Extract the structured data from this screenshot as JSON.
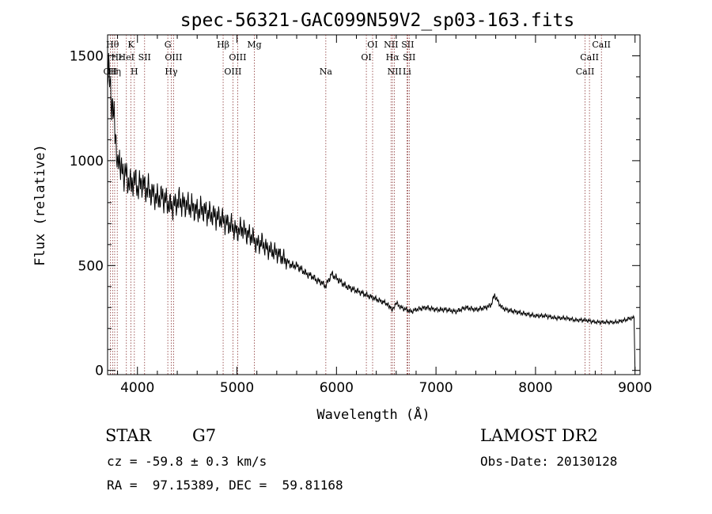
{
  "chart_data": {
    "type": "line",
    "title": "spec-56321-GAC099N59V2_sp03-163.fits",
    "xlabel": "Wavelength (Å)",
    "ylabel": "Flux (relative)",
    "xlim": [
      3700,
      9050
    ],
    "ylim": [
      -20,
      1600
    ],
    "xticks": [
      4000,
      5000,
      6000,
      7000,
      8000,
      9000
    ],
    "yticks": [
      0,
      500,
      1000,
      1500
    ],
    "series": [
      {
        "x": [
          3700,
          3720,
          3740,
          3760,
          3780,
          3800,
          3820,
          3840,
          3860,
          3880,
          3900,
          3920,
          3940,
          3960,
          3980,
          4000,
          4020,
          4050,
          4080,
          4100,
          4130,
          4160,
          4200,
          4250,
          4300,
          4340,
          4380,
          4420,
          4460,
          4500,
          4550,
          4600,
          4650,
          4700,
          4750,
          4800,
          4850,
          4900,
          4950,
          5000,
          5050,
          5100,
          5150,
          5200,
          5250,
          5300,
          5350,
          5400,
          5450,
          5500,
          5550,
          5600,
          5650,
          5700,
          5750,
          5800,
          5850,
          5890,
          5950,
          6000,
          6050,
          6100,
          6150,
          6200,
          6250,
          6300,
          6350,
          6400,
          6450,
          6500,
          6563,
          6600,
          6650,
          6700,
          6750,
          6800,
          6900,
          7000,
          7100,
          7200,
          7300,
          7400,
          7500,
          7550,
          7590,
          7620,
          7660,
          7700,
          7800,
          7900,
          8000,
          8100,
          8200,
          8300,
          8400,
          8500,
          8600,
          8700,
          8800,
          8900,
          8960,
          8990,
          9000
        ],
        "y": [
          1450,
          1380,
          1300,
          1200,
          1150,
          950,
          1020,
          960,
          910,
          980,
          870,
          930,
          860,
          920,
          900,
          870,
          880,
          900,
          860,
          870,
          850,
          840,
          820,
          830,
          800,
          780,
          790,
          810,
          790,
          790,
          780,
          760,
          770,
          750,
          740,
          730,
          720,
          700,
          690,
          660,
          680,
          650,
          640,
          600,
          610,
          580,
          570,
          560,
          540,
          520,
          500,
          500,
          480,
          460,
          450,
          430,
          420,
          400,
          460,
          440,
          420,
          400,
          390,
          380,
          370,
          360,
          350,
          340,
          330,
          320,
          290,
          320,
          300,
          290,
          280,
          290,
          300,
          290,
          290,
          280,
          300,
          290,
          300,
          310,
          360,
          330,
          300,
          290,
          280,
          270,
          260,
          260,
          250,
          250,
          240,
          240,
          230,
          230,
          230,
          240,
          250,
          250,
          0
        ]
      }
    ],
    "line_markers": [
      {
        "w": 3727,
        "label": "OII",
        "row": 2
      },
      {
        "w": 3750,
        "label": "Hθ",
        "row": 0
      },
      {
        "w": 3771,
        "label": "Hη",
        "row": 2
      },
      {
        "w": 3797,
        "label": "Hε",
        "row": 1
      },
      {
        "w": 3889,
        "label": "HeI",
        "row": 1
      },
      {
        "w": 3934,
        "label": "K",
        "row": 0
      },
      {
        "w": 3969,
        "label": "H",
        "row": 2
      },
      {
        "w": 4072,
        "label": "SII",
        "row": 1
      },
      {
        "w": 4305,
        "label": "G",
        "row": 0
      },
      {
        "w": 4340,
        "label": "Hγ",
        "row": 2
      },
      {
        "w": 4363,
        "label": "OIII",
        "row": 1
      },
      {
        "w": 4861,
        "label": "Hβ",
        "row": 0
      },
      {
        "w": 4959,
        "label": "OIII",
        "row": 2
      },
      {
        "w": 5007,
        "label": "OIII",
        "row": 1
      },
      {
        "w": 5175,
        "label": "Mg",
        "row": 0
      },
      {
        "w": 5893,
        "label": "Na",
        "row": 2
      },
      {
        "w": 6300,
        "label": "OI",
        "row": 1
      },
      {
        "w": 6363,
        "label": "OI",
        "row": 0
      },
      {
        "w": 6548,
        "label": "NII",
        "row": 0
      },
      {
        "w": 6563,
        "label": "Hα",
        "row": 1
      },
      {
        "w": 6583,
        "label": "NII",
        "row": 2
      },
      {
        "w": 6708,
        "label": "Li",
        "row": 2
      },
      {
        "w": 6716,
        "label": "SII",
        "row": 0
      },
      {
        "w": 6731,
        "label": "SII",
        "row": 1
      },
      {
        "w": 8498,
        "label": "CaII",
        "row": 2
      },
      {
        "w": 8542,
        "label": "CaII",
        "row": 1
      },
      {
        "w": 8662,
        "label": "CaII",
        "row": 0
      }
    ]
  },
  "info": {
    "class": "STAR",
    "subclass": "G7",
    "cz": "cz = -59.8 ± 0.3 km/s",
    "coords": "RA =  97.15389, DEC =  59.81168",
    "survey": "LAMOST DR2",
    "obs_date": "Obs-Date: 20130128"
  }
}
